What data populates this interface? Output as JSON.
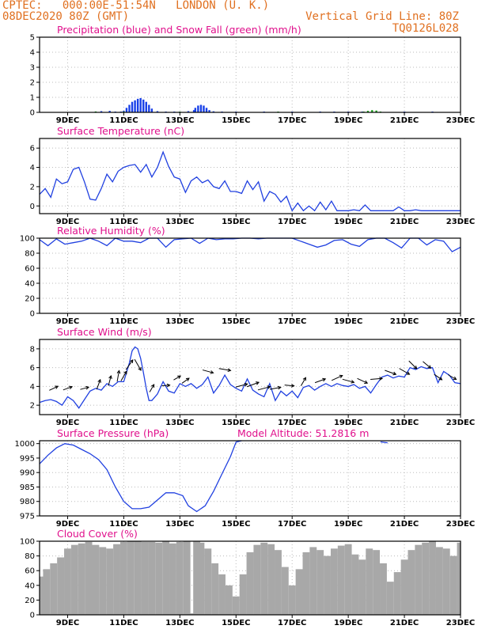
{
  "header": {
    "line1": "CPTEC:   000:00E-51:54N   LONDON (U. K.)",
    "line2": "08DEC2020 80Z (GMT)",
    "grid_note": "Vertical Grid Line: 80Z",
    "code": "TQ0126L028"
  },
  "colors": {
    "header": "#e07020",
    "panel_title": "#e0108c",
    "rain": "#1840e8",
    "snow": "#10a010",
    "line": "#2040e0",
    "cloud": "#a8a8a8",
    "wind_arrow": "#000000",
    "grid": "#bbbbbb"
  },
  "date_ticks": [
    "9DEC",
    "11DEC",
    "13DEC",
    "15DEC",
    "17DEC",
    "19DEC",
    "21DEC",
    "23DEC"
  ],
  "date_tick_days": [
    9,
    11,
    13,
    15,
    17,
    19,
    21,
    23
  ],
  "x_range_days": [
    8.0,
    23.0
  ],
  "chart_data": [
    {
      "id": "precip",
      "type": "bar",
      "title": "Precipitation (blue) and Snow Fall (green) (mm/h)",
      "ylim": [
        0,
        5
      ],
      "yticks": [
        0,
        1,
        2,
        3,
        4,
        5
      ],
      "grid": true,
      "series": [
        {
          "name": "Precipitation",
          "color": "#1840e8",
          "x": [
            8.0,
            9.0,
            10.0,
            10.2,
            10.5,
            10.7,
            10.9,
            11.0,
            11.1,
            11.2,
            11.3,
            11.4,
            11.5,
            11.6,
            11.7,
            11.8,
            11.9,
            12.0,
            12.2,
            12.5,
            12.8,
            13.0,
            13.3,
            13.5,
            13.55,
            13.65,
            13.75,
            13.85,
            13.95,
            14.05,
            14.2,
            14.5,
            15.0,
            16.0,
            17.0,
            18.0,
            18.5,
            19.0,
            19.5,
            20.0,
            21.0,
            22.0,
            23.0
          ],
          "values": [
            0,
            0,
            0.05,
            0.08,
            0.1,
            0.05,
            0.03,
            0.1,
            0.3,
            0.5,
            0.7,
            0.8,
            0.9,
            0.95,
            0.85,
            0.7,
            0.5,
            0.25,
            0.08,
            0.05,
            0.05,
            0.04,
            0.08,
            0.15,
            0.3,
            0.45,
            0.5,
            0.45,
            0.3,
            0.15,
            0.07,
            0.03,
            0.02,
            0.02,
            0.01,
            0.01,
            0.01,
            0.01,
            0.02,
            0.02,
            0.01,
            0.01,
            0
          ]
        },
        {
          "name": "Snow Fall",
          "color": "#10a010",
          "x": [
            9.9,
            10.0,
            10.1,
            10.8,
            11.0,
            11.1,
            12.9,
            13.0,
            13.1,
            16.4,
            16.5,
            16.6,
            19.55,
            19.7,
            19.85,
            20.0,
            20.15,
            20.3
          ],
          "values": [
            0,
            0.06,
            0,
            0,
            0.05,
            0,
            0,
            0.04,
            0,
            0,
            0.04,
            0,
            0.03,
            0.1,
            0.15,
            0.12,
            0.05,
            0
          ]
        }
      ]
    },
    {
      "id": "temperature",
      "type": "line",
      "title": "Surface Temperature (nC)",
      "ylim": [
        -0.8,
        7.0
      ],
      "yticks": [
        0,
        2,
        4,
        6
      ],
      "grid": true,
      "x": [
        8.0,
        8.2,
        8.4,
        8.6,
        8.8,
        9.0,
        9.2,
        9.4,
        9.6,
        9.8,
        10.0,
        10.2,
        10.4,
        10.6,
        10.8,
        11.0,
        11.2,
        11.4,
        11.6,
        11.8,
        12.0,
        12.2,
        12.4,
        12.6,
        12.8,
        13.0,
        13.2,
        13.4,
        13.6,
        13.8,
        14.0,
        14.2,
        14.4,
        14.6,
        14.8,
        15.0,
        15.2,
        15.4,
        15.6,
        15.8,
        16.0,
        16.2,
        16.4,
        16.6,
        16.8,
        17.0,
        17.2,
        17.4,
        17.6,
        17.8,
        18.0,
        18.2,
        18.4,
        18.6,
        18.8,
        19.0,
        19.2,
        19.4,
        19.6,
        19.8,
        20.0,
        20.2,
        20.4,
        20.6,
        20.8,
        21.0,
        21.2,
        21.4,
        21.6,
        21.8,
        22.0,
        22.2,
        22.4,
        22.6,
        22.8,
        23.0
      ],
      "values": [
        1.2,
        1.8,
        0.9,
        2.8,
        2.3,
        2.5,
        3.8,
        4.0,
        2.5,
        0.7,
        0.6,
        1.8,
        3.3,
        2.5,
        3.6,
        4.0,
        4.2,
        4.3,
        3.5,
        4.3,
        3.0,
        4.0,
        5.6,
        4.1,
        3.0,
        2.8,
        1.4,
        2.6,
        3.0,
        2.4,
        2.7,
        2.0,
        1.8,
        2.6,
        1.5,
        1.5,
        1.3,
        2.6,
        1.7,
        2.5,
        0.5,
        1.5,
        1.2,
        0.4,
        1.0,
        -0.5,
        0.3,
        -0.5,
        0.0,
        -0.5,
        0.4,
        -0.4,
        0.5,
        -0.5,
        -0.5,
        -0.5,
        -0.4,
        -0.5,
        0.1,
        -0.5,
        -0.5,
        -0.5,
        -0.5,
        -0.5,
        -0.1,
        -0.5,
        -0.5,
        -0.4,
        -0.5,
        -0.5,
        -0.5,
        -0.5,
        -0.5,
        -0.5,
        -0.5,
        -0.5
      ]
    },
    {
      "id": "humidity",
      "type": "line",
      "title": "Relative Humidity (%)",
      "ylim": [
        0,
        100
      ],
      "yticks": [
        0,
        20,
        40,
        60,
        80,
        100
      ],
      "grid": true,
      "x": [
        8.0,
        8.3,
        8.6,
        8.9,
        9.2,
        9.5,
        9.8,
        10.1,
        10.4,
        10.7,
        11.0,
        11.3,
        11.6,
        11.9,
        12.2,
        12.5,
        12.8,
        13.1,
        13.4,
        13.7,
        14.0,
        14.3,
        14.6,
        14.9,
        15.2,
        15.5,
        15.8,
        16.1,
        16.4,
        16.7,
        17.0,
        17.3,
        17.6,
        17.9,
        18.2,
        18.5,
        18.8,
        19.1,
        19.4,
        19.7,
        20.0,
        20.3,
        20.6,
        20.9,
        21.2,
        21.5,
        21.8,
        22.1,
        22.4,
        22.7,
        23.0
      ],
      "values": [
        98,
        90,
        99,
        92,
        94,
        96,
        100,
        96,
        90,
        100,
        96,
        96,
        94,
        100,
        100,
        88,
        98,
        99,
        100,
        93,
        100,
        98,
        99,
        99,
        100,
        100,
        99,
        100,
        100,
        100,
        100,
        96,
        92,
        88,
        91,
        97,
        98,
        92,
        89,
        98,
        100,
        100,
        94,
        87,
        100,
        100,
        91,
        98,
        96,
        82,
        88
      ]
    },
    {
      "id": "wind",
      "type": "line",
      "title": "Surface Wind (m/s)",
      "ylim": [
        1.0,
        9.0
      ],
      "yticks": [
        2,
        4,
        6,
        8
      ],
      "grid": true,
      "x": [
        8.0,
        8.2,
        8.4,
        8.6,
        8.8,
        9.0,
        9.2,
        9.4,
        9.6,
        9.8,
        10.0,
        10.2,
        10.4,
        10.6,
        10.8,
        11.0,
        11.2,
        11.3,
        11.4,
        11.5,
        11.6,
        11.7,
        11.8,
        11.9,
        12.0,
        12.2,
        12.4,
        12.6,
        12.8,
        13.0,
        13.2,
        13.4,
        13.6,
        13.8,
        14.0,
        14.2,
        14.4,
        14.6,
        14.8,
        15.0,
        15.2,
        15.4,
        15.6,
        15.8,
        16.0,
        16.2,
        16.4,
        16.6,
        16.8,
        17.0,
        17.2,
        17.4,
        17.6,
        17.8,
        18.0,
        18.2,
        18.4,
        18.6,
        18.8,
        19.0,
        19.2,
        19.4,
        19.6,
        19.8,
        20.0,
        20.2,
        20.4,
        20.6,
        20.8,
        21.0,
        21.2,
        21.4,
        21.6,
        21.8,
        22.0,
        22.2,
        22.4,
        22.6,
        22.8,
        23.0
      ],
      "values": [
        2.3,
        2.5,
        2.6,
        2.4,
        2.0,
        2.9,
        2.5,
        1.7,
        2.6,
        3.5,
        3.8,
        3.6,
        4.3,
        4.0,
        4.5,
        4.5,
        6.5,
        7.8,
        8.2,
        8.0,
        7.0,
        5.5,
        3.8,
        2.5,
        2.5,
        3.2,
        4.5,
        3.5,
        3.3,
        4.3,
        4.0,
        4.3,
        3.8,
        4.2,
        5.0,
        3.3,
        4.1,
        5.2,
        4.2,
        3.8,
        3.5,
        4.8,
        3.6,
        3.2,
        2.9,
        4.3,
        2.5,
        3.5,
        3.0,
        3.5,
        2.8,
        3.9,
        4.1,
        3.6,
        4.0,
        4.3,
        4.0,
        4.3,
        4.1,
        4.0,
        4.2,
        3.8,
        4.0,
        3.3,
        4.2,
        5.0,
        5.2,
        4.9,
        5.1,
        5.0,
        6.0,
        5.8,
        6.1,
        5.9,
        6.0,
        4.4,
        5.6,
        5.2,
        4.4,
        4.3
      ],
      "vectors": {
        "x": [
          8.5,
          9.0,
          9.6,
          10.1,
          10.5,
          10.8,
          11.0,
          11.2,
          11.5,
          12.0,
          12.5,
          12.9,
          13.2,
          14.0,
          14.6,
          15.2,
          15.6,
          16.0,
          16.4,
          16.9,
          17.4,
          18.0,
          18.6,
          19.0,
          19.5,
          20.0,
          20.5,
          21.0,
          21.3,
          21.8,
          22.2,
          22.7
        ],
        "angle_deg": [
          25,
          20,
          15,
          70,
          75,
          80,
          60,
          55,
          -60,
          60,
          5,
          30,
          35,
          -15,
          -10,
          15,
          20,
          15,
          10,
          -5,
          60,
          20,
          25,
          -15,
          -25,
          5,
          -20,
          -30,
          -45,
          -40,
          -35,
          -30
        ],
        "length": [
          12,
          12,
          11,
          13,
          13,
          14,
          14,
          15,
          16,
          11,
          10,
          10,
          11,
          14,
          15,
          15,
          16,
          16,
          14,
          12,
          12,
          14,
          15,
          15,
          14,
          15,
          15,
          15,
          14,
          13,
          12,
          12
        ]
      }
    },
    {
      "id": "pressure",
      "type": "line",
      "title": "Surface Pressure (hPa)",
      "annotation": "Model Altitude: 51.2816 m",
      "ylim": [
        975,
        1001
      ],
      "yticks": [
        975,
        980,
        985,
        990,
        995,
        1000
      ],
      "grid": true,
      "x": [
        8.0,
        8.3,
        8.6,
        8.9,
        9.2,
        9.5,
        9.8,
        10.1,
        10.4,
        10.7,
        11.0,
        11.3,
        11.6,
        11.9,
        12.2,
        12.5,
        12.8,
        13.1,
        13.3,
        13.6,
        13.9,
        14.2,
        14.5,
        14.8,
        15.0,
        15.2
      ],
      "values": [
        993,
        996,
        998.5,
        1000,
        999.5,
        998,
        996.5,
        994.5,
        991,
        985,
        980,
        977.5,
        977.5,
        978,
        980.5,
        983,
        983,
        982,
        978.5,
        976.5,
        978.5,
        983.5,
        989.5,
        995.5,
        1000.5,
        1001
      ],
      "x2": [
        20.15,
        20.4
      ],
      "values2": [
        1000.6,
        1000.3
      ]
    },
    {
      "id": "cloud",
      "type": "bar",
      "title": "Cloud Cover (%)",
      "ylim": [
        0,
        100
      ],
      "yticks": [
        0,
        20,
        40,
        60,
        80,
        100
      ],
      "grid": true,
      "x": [
        8.0,
        8.25,
        8.5,
        8.75,
        9.0,
        9.25,
        9.5,
        9.75,
        10.0,
        10.25,
        10.5,
        10.75,
        11.0,
        11.25,
        11.5,
        11.75,
        12.0,
        12.25,
        12.5,
        12.75,
        13.0,
        13.25,
        13.45,
        13.6,
        13.75,
        14.0,
        14.25,
        14.5,
        14.75,
        15.0,
        15.25,
        15.5,
        15.75,
        16.0,
        16.25,
        16.5,
        16.75,
        17.0,
        17.25,
        17.5,
        17.75,
        18.0,
        18.25,
        18.5,
        18.75,
        19.0,
        19.25,
        19.5,
        19.75,
        20.0,
        20.25,
        20.5,
        20.75,
        21.0,
        21.25,
        21.5,
        21.75,
        22.0,
        22.25,
        22.5,
        22.75,
        23.0
      ],
      "values": [
        52,
        62,
        70,
        78,
        90,
        95,
        97,
        99,
        95,
        92,
        90,
        96,
        99,
        100,
        100,
        99,
        99,
        98,
        100,
        97,
        99,
        100,
        2,
        100,
        98,
        90,
        70,
        55,
        40,
        25,
        55,
        85,
        95,
        98,
        96,
        88,
        65,
        40,
        62,
        85,
        92,
        88,
        80,
        90,
        94,
        96,
        82,
        75,
        90,
        88,
        70,
        45,
        58,
        75,
        88,
        95,
        98,
        100,
        92,
        90,
        80,
        98
      ]
    }
  ]
}
